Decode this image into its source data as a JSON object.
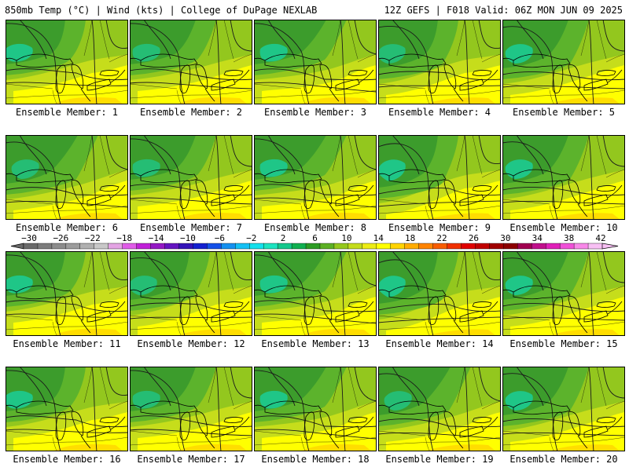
{
  "header": {
    "left_title": "850mb Temp (°C) | Wind (kts) | College of DuPage NEXLAB",
    "right_title": "12Z GEFS | F018 Valid: 06Z MON JUN 09 2025"
  },
  "panels": [
    {
      "label": "Ensemble Member: 1",
      "variant": 0
    },
    {
      "label": "Ensemble Member: 2",
      "variant": 1
    },
    {
      "label": "Ensemble Member: 3",
      "variant": 2
    },
    {
      "label": "Ensemble Member: 4",
      "variant": 3
    },
    {
      "label": "Ensemble Member: 5",
      "variant": 4
    },
    {
      "label": "Ensemble Member: 6",
      "variant": 5
    },
    {
      "label": "Ensemble Member: 7",
      "variant": 1
    },
    {
      "label": "Ensemble Member: 8",
      "variant": 2
    },
    {
      "label": "Ensemble Member: 9",
      "variant": 6
    },
    {
      "label": "Ensemble Member: 10",
      "variant": 4
    },
    {
      "label": "Ensemble Member: 11",
      "variant": 0
    },
    {
      "label": "Ensemble Member: 12",
      "variant": 3
    },
    {
      "label": "Ensemble Member: 13",
      "variant": 2
    },
    {
      "label": "Ensemble Member: 14",
      "variant": 6
    },
    {
      "label": "Ensemble Member: 15",
      "variant": 4
    },
    {
      "label": "Ensemble Member: 16",
      "variant": 0
    },
    {
      "label": "Ensemble Member: 17",
      "variant": 1
    },
    {
      "label": "Ensemble Member: 18",
      "variant": 2
    },
    {
      "label": "Ensemble Member: 19",
      "variant": 5
    },
    {
      "label": "Ensemble Member: 20",
      "variant": 4
    }
  ],
  "colorbar": {
    "labels": [
      "−30",
      "−26",
      "−22",
      "−18",
      "−14",
      "−10",
      "−6",
      "−2",
      "2",
      "6",
      "10",
      "14",
      "18",
      "22",
      "26",
      "30",
      "34",
      "38",
      "42"
    ],
    "colors": [
      "#6a6a6a",
      "#7c7c7c",
      "#8c8c8c",
      "#9c9c9c",
      "#b0b0b0",
      "#c8c8c8",
      "#e4a4e4",
      "#e05ce8",
      "#c020d8",
      "#9418c4",
      "#6414c0",
      "#3414b8",
      "#1420d0",
      "#1450e8",
      "#1490f0",
      "#14c0f4",
      "#14e0ec",
      "#1ce4c0",
      "#14c88c",
      "#10b050",
      "#2c9c24",
      "#5cb024",
      "#94c81c",
      "#c4dc1c",
      "#ecec14",
      "#ffff00",
      "#ffd400",
      "#ffac00",
      "#ff8400",
      "#f85c00",
      "#f03000",
      "#e00000",
      "#c00000",
      "#a00000",
      "#8c0000",
      "#a00050",
      "#c0108c",
      "#e020b8",
      "#f050d8",
      "#f888e8",
      "#f8c0f4"
    ]
  },
  "map_colors": {
    "dark_green": "#3c9c2c",
    "green": "#5cb32c",
    "light_green": "#93c71e",
    "yellow_green": "#c6dd1b",
    "yellow": "#ffff00",
    "pale_yellow": "#f0f013",
    "orange": "#ffd400",
    "teal": "#1ec88c",
    "contour": "#1a1a1a"
  }
}
